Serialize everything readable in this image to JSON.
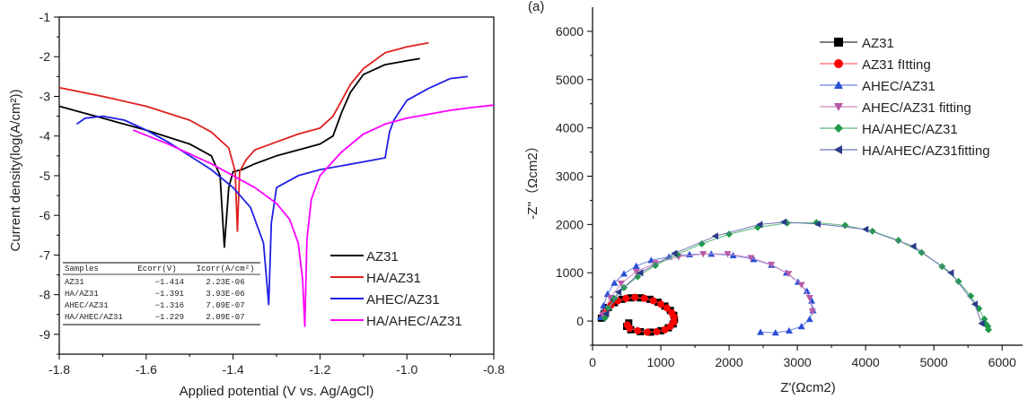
{
  "chart_data": [
    {
      "type": "line",
      "xlabel": "Applied potential (V vs. Ag/AgCl)",
      "ylabel": "Current density(log(A/cm²))",
      "xlim": [
        -1.8,
        -0.8
      ],
      "ylim": [
        -9.5,
        -1
      ],
      "xticks": [
        -1.8,
        -1.6,
        -1.4,
        -1.2,
        -1.0,
        -0.8
      ],
      "xtick_labels": [
        "-1.8",
        "-1.6",
        "-1.4",
        "-1.2",
        "-1.0",
        "-0.8"
      ],
      "yticks": [
        -9,
        -8,
        -7,
        -6,
        -5,
        -4,
        -3,
        -2,
        -1
      ],
      "ytick_labels": [
        "-9",
        "-8",
        "-7",
        "-6",
        "-5",
        "-4",
        "-3",
        "-2",
        "-1"
      ],
      "legend_position": "bottom-right",
      "series": [
        {
          "name": "AZ31",
          "color": "#000000",
          "x": [
            -1.8,
            -1.7,
            -1.6,
            -1.5,
            -1.45,
            -1.43,
            -1.42,
            -1.41,
            -1.4,
            -1.38,
            -1.35,
            -1.3,
            -1.25,
            -1.2,
            -1.17,
            -1.15,
            -1.13,
            -1.1,
            -1.05,
            -1.0,
            -0.97
          ],
          "y": [
            -3.25,
            -3.55,
            -3.85,
            -4.2,
            -4.5,
            -5.0,
            -6.8,
            -5.3,
            -4.9,
            -4.85,
            -4.7,
            -4.5,
            -4.35,
            -4.2,
            -4.0,
            -3.4,
            -2.9,
            -2.45,
            -2.2,
            -2.1,
            -2.05
          ]
        },
        {
          "name": "HA/AZ31",
          "color": "#e0201e",
          "x": [
            -1.8,
            -1.7,
            -1.6,
            -1.5,
            -1.45,
            -1.41,
            -1.395,
            -1.39,
            -1.385,
            -1.37,
            -1.35,
            -1.3,
            -1.25,
            -1.2,
            -1.17,
            -1.15,
            -1.13,
            -1.1,
            -1.05,
            -1.0,
            -0.95
          ],
          "y": [
            -2.78,
            -3.0,
            -3.25,
            -3.6,
            -3.9,
            -4.3,
            -4.9,
            -6.4,
            -4.9,
            -4.6,
            -4.35,
            -4.15,
            -3.95,
            -3.8,
            -3.5,
            -3.1,
            -2.7,
            -2.3,
            -1.9,
            -1.75,
            -1.65
          ]
        },
        {
          "name": "AHEC/AZ31",
          "color": "#1f1fe6",
          "x": [
            -1.76,
            -1.74,
            -1.7,
            -1.65,
            -1.6,
            -1.55,
            -1.5,
            -1.45,
            -1.4,
            -1.36,
            -1.33,
            -1.318,
            -1.312,
            -1.3,
            -1.25,
            -1.2,
            -1.1,
            -1.05,
            -1.04,
            -1.03,
            -1.0,
            -0.95,
            -0.9,
            -0.86
          ],
          "y": [
            -3.7,
            -3.55,
            -3.5,
            -3.6,
            -3.85,
            -4.15,
            -4.5,
            -4.85,
            -5.3,
            -5.8,
            -6.7,
            -8.25,
            -6.2,
            -5.3,
            -5.0,
            -4.85,
            -4.65,
            -4.55,
            -3.9,
            -3.6,
            -3.1,
            -2.8,
            -2.55,
            -2.5
          ]
        },
        {
          "name": "HA/AHEC/AZ31",
          "color": "#ff00ff",
          "x": [
            -1.63,
            -1.55,
            -1.5,
            -1.45,
            -1.4,
            -1.35,
            -1.3,
            -1.27,
            -1.25,
            -1.24,
            -1.235,
            -1.23,
            -1.22,
            -1.2,
            -1.15,
            -1.1,
            -1.05,
            -1.0,
            -0.95,
            -0.9,
            -0.85,
            -0.8
          ],
          "y": [
            -3.85,
            -4.2,
            -4.45,
            -4.7,
            -5.0,
            -5.3,
            -5.7,
            -6.1,
            -6.7,
            -7.6,
            -8.8,
            -6.6,
            -5.6,
            -5.0,
            -4.4,
            -3.95,
            -3.7,
            -3.55,
            -3.45,
            -3.35,
            -3.28,
            -3.22
          ]
        }
      ],
      "table": {
        "headers": [
          "Samples",
          "Ecorr(V)",
          "Icorr(A/cm²)"
        ],
        "rows": [
          [
            "AZ31",
            "−1.414",
            "2.23E-06"
          ],
          [
            "HA/AZ31",
            "−1.391",
            "3.93E-06"
          ],
          [
            "AHEC/AZ31",
            "−1.316",
            "7.09E-07"
          ],
          [
            "HA/AHEC/AZ31",
            "−1.229",
            "2.09E-07"
          ]
        ]
      }
    },
    {
      "type": "scatter",
      "panel_label": "(a)",
      "xlabel": "Z'(Ωcm2)",
      "ylabel": "-Z''（Ωcm2）",
      "xlim": [
        0,
        6300
      ],
      "ylim": [
        -500,
        6500
      ],
      "xticks": [
        0,
        1000,
        2000,
        3000,
        4000,
        5000,
        6000
      ],
      "xtick_labels": [
        "0",
        "1000",
        "2000",
        "3000",
        "4000",
        "5000",
        "6000"
      ],
      "yticks": [
        0,
        1000,
        2000,
        3000,
        4000,
        5000,
        6000
      ],
      "ytick_labels": [
        "0",
        "1000",
        "2000",
        "3000",
        "4000",
        "5000",
        "6000"
      ],
      "legend_position": "top-right",
      "series": [
        {
          "name": "AZ31",
          "color": "#000000",
          "marker": "square",
          "legend_line": "#333333",
          "x": [
            130,
            170,
            230,
            320,
            430,
            560,
            700,
            840,
            960,
            1060,
            1140,
            1190,
            1200,
            1180,
            1110,
            1000,
            850,
            700,
            560,
            500,
            530
          ],
          "y": [
            60,
            160,
            280,
            380,
            450,
            480,
            480,
            450,
            390,
            310,
            220,
            120,
            30,
            -60,
            -140,
            -200,
            -230,
            -220,
            -180,
            -110,
            -40
          ]
        },
        {
          "name": "AZ31 fItting",
          "color": "#ff0000",
          "marker": "circle",
          "legend_line": "#ff6666",
          "x": [
            150,
            200,
            270,
            370,
            490,
            620,
            760,
            890,
            1000,
            1090,
            1160,
            1195,
            1190,
            1140,
            1060,
            940,
            800,
            660,
            540,
            510
          ],
          "y": [
            110,
            220,
            330,
            420,
            470,
            490,
            470,
            420,
            350,
            270,
            170,
            80,
            -20,
            -110,
            -180,
            -220,
            -230,
            -200,
            -150,
            -80
          ]
        },
        {
          "name": "AHEC/AZ31",
          "color": "#2a4fd6",
          "marker": "triangle",
          "legend_line": "#6b82e0",
          "x": [
            120,
            160,
            220,
            320,
            460,
            640,
            860,
            1120,
            1420,
            1740,
            2060,
            2360,
            2620,
            2840,
            3010,
            3140,
            3210,
            3230,
            3180,
            3060,
            2880,
            2680,
            2460
          ],
          "y": [
            80,
            320,
            560,
            790,
            980,
            1140,
            1260,
            1330,
            1380,
            1390,
            1360,
            1280,
            1160,
            1000,
            810,
            620,
            420,
            220,
            40,
            -110,
            -200,
            -240,
            -230
          ]
        },
        {
          "name": "AHEC/AZ31 fitting",
          "color": "#b85aa8",
          "marker": "triangle-down",
          "legend_line": "#c98ac0",
          "x": [
            150,
            260,
            420,
            640,
            920,
            1260,
            1620,
            1980,
            2320,
            2620,
            2870,
            3060,
            3180,
            3220
          ],
          "y": [
            130,
            480,
            780,
            1020,
            1200,
            1330,
            1390,
            1390,
            1310,
            1170,
            980,
            750,
            480,
            200
          ]
        },
        {
          "name": "HA/AHEC/AZ31",
          "color": "#1f9a4a",
          "marker": "diamond",
          "legend_line": "#5ab87a",
          "x": [
            180,
            230,
            320,
            460,
            660,
            920,
            1240,
            1600,
            2000,
            2420,
            2850,
            3280,
            3700,
            4100,
            4480,
            4820,
            5120,
            5360,
            5540,
            5660,
            5740,
            5790,
            5800,
            5760
          ],
          "y": [
            60,
            260,
            470,
            690,
            920,
            1150,
            1380,
            1600,
            1800,
            1940,
            2030,
            2040,
            1980,
            1860,
            1670,
            1420,
            1130,
            820,
            520,
            260,
            40,
            -110,
            -180,
            -60
          ]
        },
        {
          "name": "HA/AHEC/AZ31fitting",
          "color": "#2b3a8a",
          "marker": "triangle-left",
          "legend_line": "#6a74b0",
          "x": [
            200,
            380,
            700,
            1200,
            1800,
            2450,
            2800,
            3300,
            4000,
            4700,
            5250,
            5600,
            5700
          ],
          "y": [
            150,
            600,
            1000,
            1400,
            1760,
            2000,
            2050,
            2010,
            1900,
            1550,
            1000,
            350,
            -50
          ]
        }
      ]
    }
  ]
}
